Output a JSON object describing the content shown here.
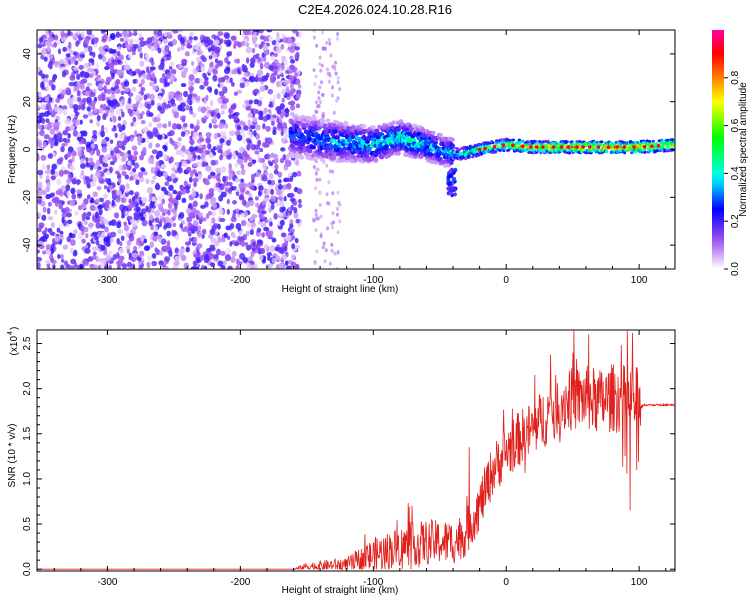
{
  "title": "C2E4.2026.024.10.28.R16",
  "chart_data": [
    {
      "type": "heatmap",
      "name": "spectrogram",
      "xlabel": "Height of straight line (km)",
      "ylabel": "Frequency (Hz)",
      "xlim": [
        -353,
        127
      ],
      "ylim": [
        -50,
        50
      ],
      "xticks": [
        -300,
        -200,
        -100,
        0,
        100
      ],
      "xtick_labels": [
        "-300",
        "-200",
        "-100",
        "0",
        "100"
      ],
      "yticks": [
        -40,
        -20,
        0,
        20,
        40
      ],
      "ytick_labels": [
        "-40",
        "-20",
        "0",
        "20",
        "40"
      ],
      "colorbar": {
        "label": "Normalized spectral amplitude",
        "range": [
          0,
          1
        ],
        "ticks": [
          0.0,
          0.2,
          0.4,
          0.6,
          0.8
        ],
        "tick_labels": [
          "0.0",
          "0.2",
          "0.4",
          "0.6",
          "0.8"
        ],
        "colors": [
          "#ffffff",
          "#a050f0",
          "#0000ff",
          "#00ffff",
          "#00ff00",
          "#ffff00",
          "#ff8000",
          "#ff0000",
          "#ff00a0"
        ]
      },
      "regions": [
        {
          "x_range": [
            -353,
            -160
          ],
          "f_range": [
            -50,
            50
          ],
          "amplitude": 0.12,
          "description": "broadband noise"
        },
        {
          "x_range": [
            -160,
            -40
          ],
          "f_range": [
            -10,
            10
          ],
          "amplitude": 0.35
        },
        {
          "x_range": [
            -40,
            127
          ],
          "f_range": [
            -3,
            4
          ],
          "amplitude": 0.6
        }
      ],
      "ridge": {
        "x": [
          -160,
          -140,
          -120,
          -100,
          -80,
          -60,
          -45,
          -35,
          -20,
          0,
          20,
          50,
          80,
          100,
          127
        ],
        "f": [
          6,
          4,
          3,
          2,
          5,
          2,
          -1,
          -2,
          0,
          2,
          1,
          1,
          1,
          1,
          2
        ],
        "peak_amplitude": [
          0.3,
          0.4,
          0.4,
          0.45,
          0.5,
          0.45,
          0.4,
          0.5,
          0.6,
          0.7,
          0.8,
          0.85,
          0.85,
          0.85,
          0.75
        ]
      }
    },
    {
      "type": "line",
      "name": "snr",
      "xlabel": "Height of straight line (km)",
      "ylabel": "SNR (10 * v/v)",
      "y_multiplier": "(x10",
      "y_multiplier_exp": "4",
      "xlim": [
        -353,
        127
      ],
      "ylim": [
        -0.02,
        2.65
      ],
      "xticks": [
        -300,
        -200,
        -100,
        0,
        100
      ],
      "xtick_labels": [
        "-300",
        "-200",
        "-100",
        "0",
        "100"
      ],
      "yticks": [
        0.0,
        0.5,
        1.0,
        1.5,
        2.0,
        2.5
      ],
      "ytick_labels": [
        "0.0",
        "0.5",
        "1.0",
        "1.5",
        "2.0",
        "2.5"
      ],
      "color": "#e0201c",
      "trend": {
        "x": [
          -353,
          -200,
          -160,
          -150,
          -120,
          -100,
          -80,
          -60,
          -40,
          -30,
          -20,
          -10,
          0,
          10,
          20,
          30,
          40,
          50,
          60,
          70,
          80,
          90,
          100,
          103,
          127
        ],
        "y": [
          0.0,
          0.0,
          0.0,
          0.03,
          0.05,
          0.15,
          0.25,
          0.3,
          0.3,
          0.4,
          0.7,
          1.1,
          1.3,
          1.45,
          1.55,
          1.7,
          1.85,
          1.88,
          1.9,
          1.85,
          1.9,
          1.88,
          1.85,
          1.82,
          1.82
        ]
      },
      "noise_amplitude": {
        "x": [
          -353,
          -160,
          -150,
          -120,
          -100,
          -60,
          -40,
          0,
          40,
          100,
          103,
          127
        ],
        "y": [
          0.0,
          0.0,
          0.05,
          0.08,
          0.2,
          0.25,
          0.25,
          0.3,
          0.35,
          0.4,
          0.01,
          0.01
        ]
      },
      "peaks": [
        {
          "x": 95,
          "y": 2.62
        },
        {
          "x": 62,
          "y": 2.6
        },
        {
          "x": 50,
          "y": 2.4
        },
        {
          "x": -28,
          "y": 1.35
        },
        {
          "x": 93,
          "y": 0.65
        },
        {
          "x": 98,
          "y": 1.1
        }
      ]
    }
  ]
}
